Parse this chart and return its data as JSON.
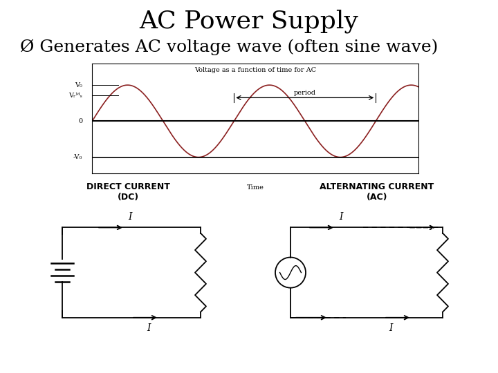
{
  "title": "AC Power Supply",
  "subtitle": "Ø Generates AC voltage wave (often sine wave)",
  "bg_color": "#ffffff",
  "title_fontsize": 26,
  "subtitle_fontsize": 18,
  "graph_title": "Voltage as a function of time for AC",
  "graph_xlabel": "Time",
  "graph_ylabel_v0": "V₀",
  "graph_ylabel_vrms": "Vᵣᴹₛ",
  "graph_ylabel_neg_v0": "-V₀",
  "period_label": "period",
  "sine_color": "#8B2020",
  "sine_linewidth": 1.2,
  "dc_title": "DIRECT CURRENT\n(DC)",
  "ac_title": "ALTERNATING CURRENT\n(AC)",
  "circuit_color": "#000000"
}
